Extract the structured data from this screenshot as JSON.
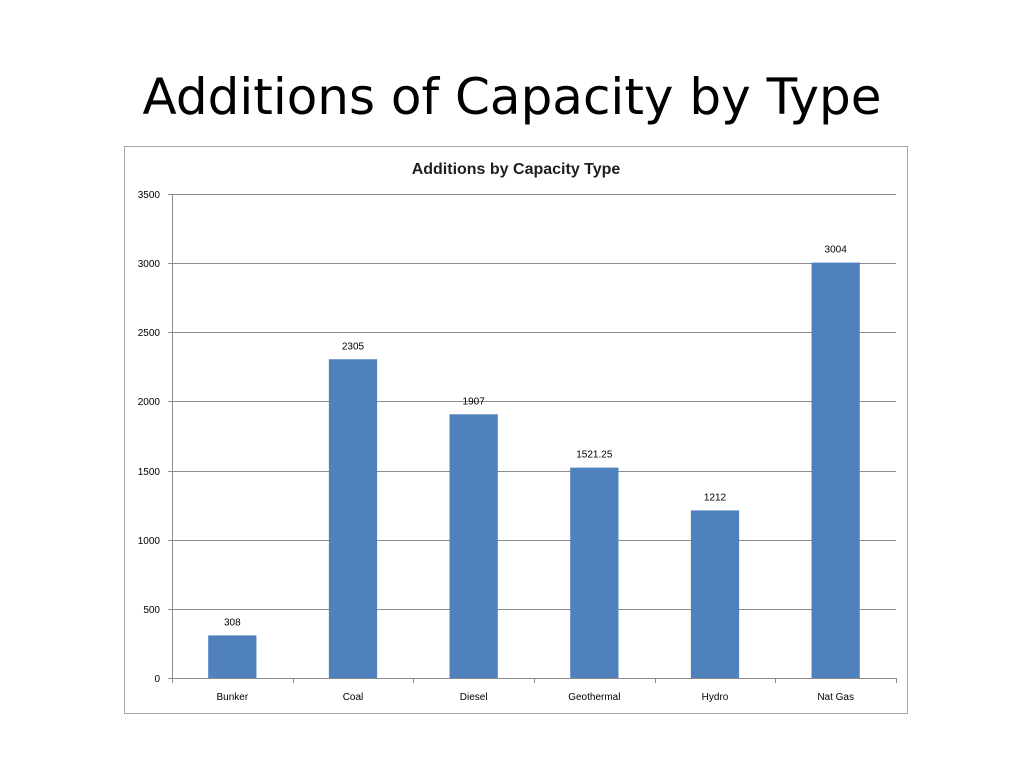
{
  "slide": {
    "title": "Additions of Capacity by Type"
  },
  "colors": {
    "bar": "#4f81bd",
    "grid": "#8c8c8c",
    "axis": "#8c8c8c"
  },
  "chart_data": {
    "type": "bar",
    "title": "Additions by Capacity Type",
    "xlabel": "",
    "ylabel": "",
    "categories": [
      "Bunker",
      "Coal",
      "Diesel",
      "Geothermal",
      "Hydro",
      "Nat Gas"
    ],
    "values": [
      308,
      2305,
      1907,
      1521.25,
      1212,
      3004
    ],
    "data_labels": [
      "308",
      "2305",
      "1907",
      "1521.25",
      "1212",
      "3004"
    ],
    "ylim": [
      0,
      3500
    ],
    "yticks": [
      0,
      500,
      1000,
      1500,
      2000,
      2500,
      3000,
      3500
    ],
    "grid": true,
    "legend": "none"
  }
}
